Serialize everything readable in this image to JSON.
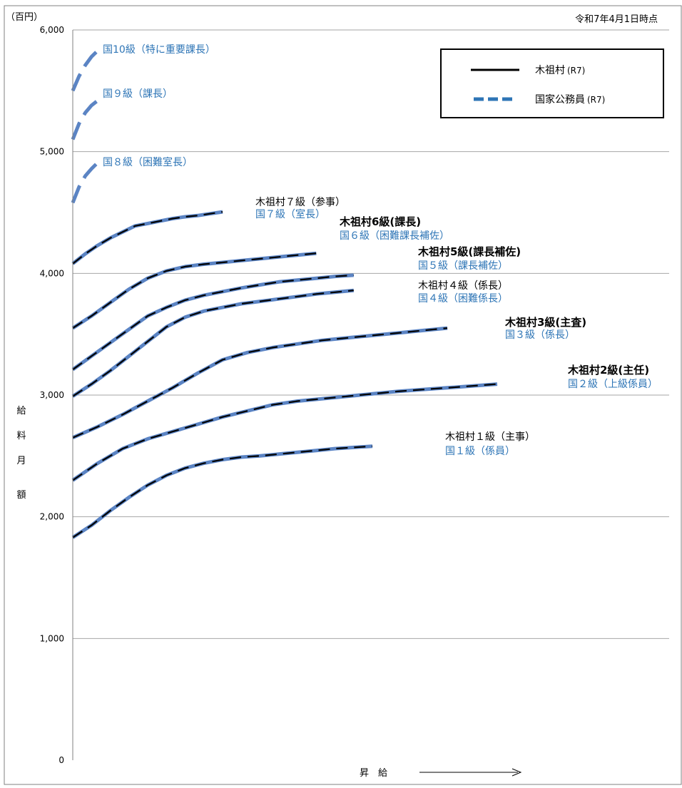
{
  "header": {
    "unit": "（百円）",
    "as_of": "令和7年4月1日時点"
  },
  "legend": {
    "placement": "top-right",
    "items": [
      {
        "label": "木祖村",
        "suffix": "(R7)",
        "style": "solid",
        "color": "#000000"
      },
      {
        "label": "国家公務員",
        "suffix": "(R7)",
        "style": "dashed",
        "color": "#2e75b6"
      }
    ]
  },
  "y_axis_label": [
    "給",
    "料",
    "月",
    "額"
  ],
  "x_axis_label": "昇　給",
  "colors": {
    "village": "#000000",
    "national": "#5b84c4",
    "national_label": "#2e75b6",
    "grid": "#a6a6a6"
  },
  "chart_data": {
    "type": "line",
    "ylim": [
      0,
      6000
    ],
    "yticks": [
      "0",
      "1,000",
      "2,000",
      "3,000",
      "4,000",
      "5,000",
      "6,000"
    ],
    "ytick_values": [
      0,
      1000,
      2000,
      3000,
      4000,
      5000,
      6000
    ],
    "grid": true,
    "x": "step",
    "series": [
      {
        "key": "g10",
        "name": "国10級（特に重要課長）",
        "label_national": "国10級（特に重要課長）",
        "label_village": "",
        "overlay": false,
        "x": [
          0,
          10,
          20,
          30,
          40
        ],
        "y": [
          5500,
          5620,
          5710,
          5780,
          5830
        ]
      },
      {
        "key": "g9",
        "name": "国９級（課長）",
        "label_national": "国９級（課長）",
        "label_village": "",
        "overlay": false,
        "x": [
          0,
          10,
          20,
          30,
          40
        ],
        "y": [
          5100,
          5230,
          5320,
          5380,
          5420
        ]
      },
      {
        "key": "g8",
        "name": "国８級（困難室長）",
        "label_national": "国８級（困難室長）",
        "label_village": "",
        "overlay": false,
        "x": [
          0,
          10,
          20,
          30,
          40
        ],
        "y": [
          4580,
          4710,
          4800,
          4860,
          4910
        ]
      },
      {
        "key": "g7",
        "name": "木祖村７級（参事）",
        "label_national": "国７級（室長）",
        "label_village": "木祖村７級（参事）",
        "overlay": true,
        "village_bold": false,
        "x": [
          0,
          20,
          40,
          60,
          80,
          100,
          120,
          140,
          160,
          180,
          200,
          220,
          240
        ],
        "y": [
          4080,
          4160,
          4230,
          4290,
          4340,
          4390,
          4410,
          4430,
          4450,
          4465,
          4475,
          4490,
          4505
        ]
      },
      {
        "key": "g6",
        "name": "木祖村6級(課長)",
        "label_national": "国６級（困難課長補佐）",
        "label_village": "木祖村6級(課長)",
        "overlay": true,
        "village_bold": true,
        "x": [
          0,
          30,
          60,
          90,
          120,
          150,
          180,
          210,
          240,
          270,
          300,
          330,
          360,
          390
        ],
        "y": [
          3550,
          3650,
          3760,
          3870,
          3960,
          4020,
          4055,
          4075,
          4090,
          4105,
          4120,
          4135,
          4150,
          4165
        ]
      },
      {
        "key": "g5",
        "name": "木祖村5級(課長補佐)",
        "label_national": "国５級（課長補佐）",
        "label_village": "木祖村5級(課長補佐)",
        "overlay": true,
        "village_bold": true,
        "x": [
          0,
          30,
          60,
          90,
          120,
          150,
          180,
          210,
          240,
          270,
          300,
          330,
          360,
          390,
          420,
          450
        ],
        "y": [
          3210,
          3320,
          3430,
          3540,
          3650,
          3720,
          3780,
          3820,
          3850,
          3880,
          3905,
          3930,
          3945,
          3960,
          3975,
          3985
        ]
      },
      {
        "key": "g4",
        "name": "木祖村４級（係長）",
        "label_national": "国４級（困難係長）",
        "label_village": "木祖村４級（係長）",
        "overlay": true,
        "village_bold": false,
        "x": [
          0,
          30,
          60,
          90,
          120,
          150,
          180,
          210,
          240,
          270,
          300,
          330,
          360,
          390,
          420,
          450
        ],
        "y": [
          2990,
          3090,
          3200,
          3320,
          3440,
          3560,
          3640,
          3690,
          3720,
          3750,
          3770,
          3790,
          3810,
          3830,
          3845,
          3860
        ]
      },
      {
        "key": "g3",
        "name": "木祖村3級(主査)",
        "label_national": "国３級（係長）",
        "label_village": "木祖村3級(主査)",
        "overlay": true,
        "village_bold": true,
        "x": [
          0,
          40,
          80,
          120,
          160,
          200,
          240,
          280,
          320,
          360,
          400,
          440,
          480,
          520,
          560,
          600
        ],
        "y": [
          2650,
          2740,
          2840,
          2950,
          3060,
          3180,
          3290,
          3350,
          3390,
          3420,
          3450,
          3470,
          3490,
          3510,
          3530,
          3550
        ]
      },
      {
        "key": "g2",
        "name": "木祖村2級(主任)",
        "label_national": "国２級（上級係員）",
        "label_village": "木祖村2級(主任)",
        "overlay": true,
        "village_bold": true,
        "x": [
          0,
          40,
          80,
          120,
          160,
          200,
          240,
          280,
          320,
          360,
          400,
          440,
          480,
          520,
          560,
          600,
          640,
          680
        ],
        "y": [
          2300,
          2440,
          2560,
          2640,
          2700,
          2760,
          2820,
          2870,
          2920,
          2950,
          2970,
          2990,
          3010,
          3030,
          3045,
          3060,
          3075,
          3090
        ]
      },
      {
        "key": "g1",
        "name": "木祖村１級（主事）",
        "label_national": "国１級（係員）",
        "label_village": "木祖村１級（主事）",
        "overlay": true,
        "village_bold": false,
        "x": [
          0,
          30,
          60,
          90,
          120,
          150,
          180,
          210,
          240,
          270,
          300,
          330,
          360,
          390,
          420,
          450,
          480
        ],
        "y": [
          1830,
          1930,
          2050,
          2160,
          2260,
          2340,
          2400,
          2440,
          2470,
          2490,
          2500,
          2515,
          2530,
          2545,
          2560,
          2570,
          2580
        ]
      }
    ]
  }
}
